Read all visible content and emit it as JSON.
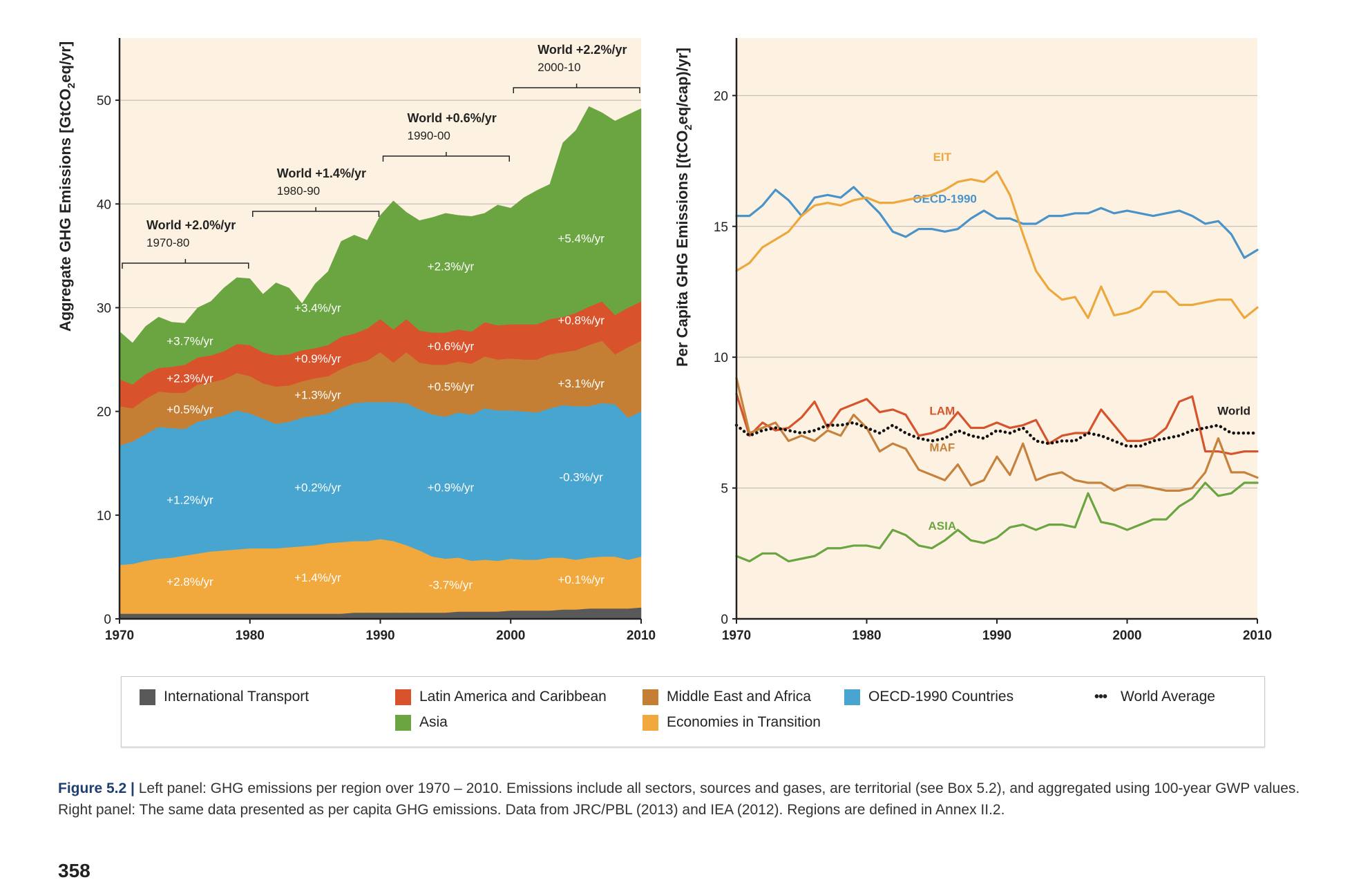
{
  "left_ylabel_pre": "Aggregate GHG Emissions [GtCO",
  "left_ylabel_sub": "2",
  "left_ylabel_post": "eq/yr]",
  "right_ylabel_pre": "Per Capita GHG Emissions [(tCO",
  "right_ylabel_sub": "2",
  "right_ylabel_post": "eq/cap)/yr]",
  "chart_data": [
    {
      "type": "area",
      "panel": "left",
      "stacked": true,
      "x": [
        1970,
        1971,
        1972,
        1973,
        1974,
        1975,
        1976,
        1977,
        1978,
        1979,
        1980,
        1981,
        1982,
        1983,
        1984,
        1985,
        1986,
        1987,
        1988,
        1989,
        1990,
        1991,
        1992,
        1993,
        1994,
        1995,
        1996,
        1997,
        1998,
        1999,
        2000,
        2001,
        2002,
        2003,
        2004,
        2005,
        2006,
        2007,
        2008,
        2009,
        2010
      ],
      "xlim": [
        1970,
        2010
      ],
      "ylim": [
        0,
        56
      ],
      "x_ticks": [
        "1970",
        "1980",
        "1990",
        "2000",
        "2010"
      ],
      "y_ticks": [
        "0",
        "10",
        "20",
        "30",
        "40",
        "50"
      ],
      "grid": true,
      "series": [
        {
          "name": "International Transport",
          "color": "#595959",
          "values": [
            0.5,
            0.5,
            0.5,
            0.5,
            0.5,
            0.5,
            0.5,
            0.5,
            0.5,
            0.5,
            0.5,
            0.5,
            0.5,
            0.5,
            0.5,
            0.5,
            0.5,
            0.5,
            0.6,
            0.6,
            0.6,
            0.6,
            0.6,
            0.6,
            0.6,
            0.6,
            0.7,
            0.7,
            0.7,
            0.7,
            0.8,
            0.8,
            0.8,
            0.8,
            0.9,
            0.9,
            1.0,
            1.0,
            1.0,
            1.0,
            1.1
          ]
        },
        {
          "name": "Economies in Transition",
          "color": "#f1a83c",
          "values": [
            4.7,
            4.8,
            5.1,
            5.3,
            5.4,
            5.6,
            5.8,
            6.0,
            6.1,
            6.2,
            6.3,
            6.3,
            6.3,
            6.4,
            6.5,
            6.6,
            6.8,
            6.9,
            6.9,
            6.9,
            7.1,
            6.9,
            6.5,
            6.0,
            5.4,
            5.2,
            5.2,
            4.9,
            5.0,
            4.9,
            5.0,
            4.9,
            4.9,
            5.1,
            5.0,
            4.8,
            4.9,
            5.0,
            5.0,
            4.7,
            4.9
          ]
        },
        {
          "name": "OECD-1990 Countries",
          "color": "#47a5d0",
          "values": [
            11.5,
            11.8,
            12.2,
            12.7,
            12.5,
            12.2,
            12.7,
            12.8,
            13.0,
            13.4,
            13.0,
            12.5,
            12.0,
            12.1,
            12.4,
            12.5,
            12.5,
            13.0,
            13.3,
            13.4,
            13.2,
            13.4,
            13.7,
            13.6,
            13.7,
            13.7,
            14.0,
            14.1,
            14.6,
            14.5,
            14.3,
            14.3,
            14.2,
            14.4,
            14.7,
            14.8,
            14.6,
            14.8,
            14.7,
            13.7,
            14.0
          ]
        },
        {
          "name": "Middle East and Africa",
          "color": "#c57f34",
          "values": [
            3.8,
            3.2,
            3.4,
            3.4,
            3.4,
            3.5,
            3.6,
            3.5,
            3.5,
            3.6,
            3.6,
            3.4,
            3.6,
            3.5,
            3.5,
            3.6,
            3.6,
            3.7,
            3.8,
            4.0,
            4.8,
            3.8,
            4.9,
            4.5,
            4.8,
            5.0,
            4.9,
            4.9,
            5.0,
            4.9,
            5.0,
            5.0,
            5.1,
            5.2,
            5.1,
            5.4,
            5.9,
            6.0,
            4.8,
            6.8,
            6.8
          ]
        },
        {
          "name": "Latin America and Caribbean",
          "color": "#d8532c",
          "values": [
            2.6,
            2.3,
            2.4,
            2.3,
            2.5,
            2.7,
            2.6,
            2.6,
            2.7,
            2.8,
            3.0,
            3.0,
            3.0,
            3.0,
            3.0,
            2.9,
            3.0,
            3.1,
            2.9,
            3.1,
            3.2,
            3.2,
            3.2,
            3.1,
            3.1,
            3.1,
            3.1,
            3.1,
            3.3,
            3.3,
            3.3,
            3.4,
            3.4,
            3.4,
            3.4,
            3.6,
            3.7,
            3.8,
            3.8,
            3.8,
            3.8
          ]
        },
        {
          "name": "Asia",
          "color": "#6aa542",
          "values": [
            4.6,
            4.0,
            4.6,
            4.9,
            4.3,
            4.0,
            4.8,
            5.2,
            6.1,
            6.4,
            6.4,
            5.6,
            7.0,
            6.4,
            4.5,
            6.2,
            7.1,
            9.2,
            9.5,
            8.5,
            10.0,
            12.4,
            10.3,
            10.6,
            11.1,
            11.5,
            11.0,
            11.1,
            10.5,
            11.6,
            11.2,
            12.2,
            12.9,
            13.0,
            16.8,
            17.6,
            19.3,
            18.2,
            18.7,
            18.6,
            18.6
          ]
        }
      ],
      "brackets": [
        {
          "label": "World +2.0%/yr",
          "period": "1970-80",
          "from": 1970,
          "to": 1980
        },
        {
          "label": "World +1.4%/yr",
          "period": "1980-90",
          "from": 1980,
          "to": 1990
        },
        {
          "label": "World +0.6%/yr",
          "period": "1990-00",
          "from": 1990,
          "to": 2000
        },
        {
          "label": "World +2.2%/yr",
          "period": "2000-10",
          "from": 2000,
          "to": 2010
        }
      ],
      "annotations": [
        {
          "text": "+3.7%/yr",
          "x": 1975.4,
          "y": 26.4
        },
        {
          "text": "+2.3%/yr",
          "x": 1975.4,
          "y": 22.8
        },
        {
          "text": "+0.5%/yr",
          "x": 1975.4,
          "y": 19.8
        },
        {
          "text": "+1.2%/yr",
          "x": 1975.4,
          "y": 11.1
        },
        {
          "text": "+2.8%/yr",
          "x": 1975.4,
          "y": 3.2
        },
        {
          "text": "+3.4%/yr",
          "x": 1985.2,
          "y": 29.6
        },
        {
          "text": "+0.9%/yr",
          "x": 1985.2,
          "y": 24.7
        },
        {
          "text": "+1.3%/yr",
          "x": 1985.2,
          "y": 21.2
        },
        {
          "text": "+0.2%/yr",
          "x": 1985.2,
          "y": 12.3
        },
        {
          "text": "+1.4%/yr",
          "x": 1985.2,
          "y": 3.6
        },
        {
          "text": "+2.3%/yr",
          "x": 1995.4,
          "y": 33.6
        },
        {
          "text": "+0.6%/yr",
          "x": 1995.4,
          "y": 25.9
        },
        {
          "text": "+0.5%/yr",
          "x": 1995.4,
          "y": 22.0
        },
        {
          "text": "+0.9%/yr",
          "x": 1995.4,
          "y": 12.3
        },
        {
          "text": "-3.7%/yr",
          "x": 1995.4,
          "y": 2.9
        },
        {
          "text": "+5.4%/yr",
          "x": 2005.4,
          "y": 36.3
        },
        {
          "text": "+0.8%/yr",
          "x": 2005.4,
          "y": 28.4
        },
        {
          "text": "+3.1%/yr",
          "x": 2005.4,
          "y": 22.3
        },
        {
          "text": "-0.3%/yr",
          "x": 2005.4,
          "y": 13.3
        },
        {
          "text": "+0.1%/yr",
          "x": 2005.4,
          "y": 3.4
        }
      ]
    },
    {
      "type": "line",
      "panel": "right",
      "x": [
        1970,
        1971,
        1972,
        1973,
        1974,
        1975,
        1976,
        1977,
        1978,
        1979,
        1980,
        1981,
        1982,
        1983,
        1984,
        1985,
        1986,
        1987,
        1988,
        1989,
        1990,
        1991,
        1992,
        1993,
        1994,
        1995,
        1996,
        1997,
        1998,
        1999,
        2000,
        2001,
        2002,
        2003,
        2004,
        2005,
        2006,
        2007,
        2008,
        2009,
        2010
      ],
      "xlim": [
        1970,
        2010
      ],
      "ylim": [
        0,
        22.2
      ],
      "x_ticks": [
        "1970",
        "1980",
        "1990",
        "2000",
        "2010"
      ],
      "y_ticks": [
        "0",
        "5",
        "10",
        "15",
        "20"
      ],
      "grid": true,
      "series": [
        {
          "name": "OECD-1990",
          "color": "#4a93c9",
          "dash": false,
          "label": {
            "text": "OECD-1990",
            "x": 1986.0,
            "y": 15.9
          },
          "values": [
            15.4,
            15.4,
            15.8,
            16.4,
            16.0,
            15.4,
            16.1,
            16.2,
            16.1,
            16.5,
            16.0,
            15.5,
            14.8,
            14.6,
            14.9,
            14.9,
            14.8,
            14.9,
            15.3,
            15.6,
            15.3,
            15.3,
            15.1,
            15.1,
            15.4,
            15.4,
            15.5,
            15.5,
            15.7,
            15.5,
            15.6,
            15.5,
            15.4,
            15.5,
            15.6,
            15.4,
            15.1,
            15.2,
            14.7,
            13.8,
            14.1
          ]
        },
        {
          "name": "EIT",
          "color": "#eca83e",
          "dash": false,
          "label": {
            "text": "EIT",
            "x": 1985.8,
            "y": 17.5
          },
          "values": [
            13.3,
            13.6,
            14.2,
            14.5,
            14.8,
            15.4,
            15.8,
            15.9,
            15.8,
            16.0,
            16.1,
            15.9,
            15.9,
            16.0,
            16.1,
            16.2,
            16.4,
            16.7,
            16.8,
            16.7,
            17.1,
            16.2,
            14.7,
            13.3,
            12.6,
            12.2,
            12.3,
            11.5,
            12.7,
            11.6,
            11.7,
            11.9,
            12.5,
            12.5,
            12.0,
            12.0,
            12.1,
            12.2,
            12.2,
            11.5,
            11.9
          ]
        },
        {
          "name": "LAM",
          "color": "#d5542c",
          "dash": false,
          "label": {
            "text": "LAM",
            "x": 1985.8,
            "y": 7.8
          },
          "values": [
            8.6,
            7.0,
            7.5,
            7.2,
            7.3,
            7.7,
            8.3,
            7.3,
            8.0,
            8.2,
            8.4,
            7.9,
            8.0,
            7.8,
            7.0,
            7.1,
            7.3,
            7.9,
            7.3,
            7.3,
            7.5,
            7.3,
            7.4,
            7.6,
            6.7,
            7.0,
            7.1,
            7.1,
            8.0,
            7.4,
            6.8,
            6.8,
            6.9,
            7.3,
            8.3,
            8.5,
            6.4,
            6.4,
            6.3,
            6.4,
            6.4
          ]
        },
        {
          "name": "MAF",
          "color": "#c6823c",
          "dash": false,
          "label": {
            "text": "MAF",
            "x": 1985.8,
            "y": 6.4
          },
          "values": [
            9.2,
            7.1,
            7.3,
            7.5,
            6.8,
            7.0,
            6.8,
            7.2,
            7.0,
            7.8,
            7.3,
            6.4,
            6.7,
            6.5,
            5.7,
            5.5,
            5.3,
            5.9,
            5.1,
            5.3,
            6.2,
            5.5,
            6.7,
            5.3,
            5.5,
            5.6,
            5.3,
            5.2,
            5.2,
            4.9,
            5.1,
            5.1,
            5.0,
            4.9,
            4.9,
            5.0,
            5.6,
            6.9,
            5.6,
            5.6,
            5.4
          ]
        },
        {
          "name": "World",
          "color": "#111111",
          "dash": true,
          "label": {
            "text": "World",
            "x": 2008.2,
            "y": 7.8
          },
          "values": [
            7.4,
            7.0,
            7.2,
            7.3,
            7.2,
            7.1,
            7.2,
            7.4,
            7.4,
            7.5,
            7.3,
            7.1,
            7.4,
            7.1,
            6.9,
            6.8,
            6.9,
            7.2,
            7.0,
            6.9,
            7.2,
            7.1,
            7.3,
            6.8,
            6.7,
            6.8,
            6.8,
            7.1,
            7.0,
            6.8,
            6.6,
            6.6,
            6.8,
            6.9,
            7.0,
            7.2,
            7.3,
            7.4,
            7.1,
            7.1,
            7.1
          ]
        },
        {
          "name": "ASIA",
          "color": "#6aa542",
          "dash": false,
          "label": {
            "text": "ASIA",
            "x": 1985.8,
            "y": 3.4
          },
          "values": [
            2.4,
            2.2,
            2.5,
            2.5,
            2.2,
            2.3,
            2.4,
            2.7,
            2.7,
            2.8,
            2.8,
            2.7,
            3.4,
            3.2,
            2.8,
            2.7,
            3.0,
            3.4,
            3.0,
            2.9,
            3.1,
            3.5,
            3.6,
            3.4,
            3.6,
            3.6,
            3.5,
            4.8,
            3.7,
            3.6,
            3.4,
            3.6,
            3.8,
            3.8,
            4.3,
            4.6,
            5.2,
            4.7,
            4.8,
            5.2,
            5.2
          ]
        }
      ]
    }
  ],
  "legend": [
    {
      "label": "International Transport",
      "color": "#595959",
      "type": "swatch"
    },
    {
      "label": "Latin America and Caribbean",
      "color": "#d8532c",
      "type": "swatch"
    },
    {
      "label": "Middle East and Africa",
      "color": "#c57f34",
      "type": "swatch"
    },
    {
      "label": "OECD-1990 Countries",
      "color": "#47a5d0",
      "type": "swatch"
    },
    {
      "label": "World Average",
      "color": "#111111",
      "type": "dots"
    },
    {
      "label": "Asia",
      "color": "#6aa542",
      "type": "swatch"
    },
    {
      "label": "Economies in Transition",
      "color": "#f1a83c",
      "type": "swatch"
    }
  ],
  "caption": {
    "label": "Figure 5.2 |",
    "text": "Left panel: GHG emissions per region over 1970 – 2010. Emissions include all sectors, sources and gases, are territorial (see Box 5.2), and aggregated using 100-year GWP values. Right panel: The same data presented as per capita GHG emissions. Data from JRC/PBL (2013) and IEA (2012). Regions are defined in Annex II.2."
  },
  "page_number": "358"
}
